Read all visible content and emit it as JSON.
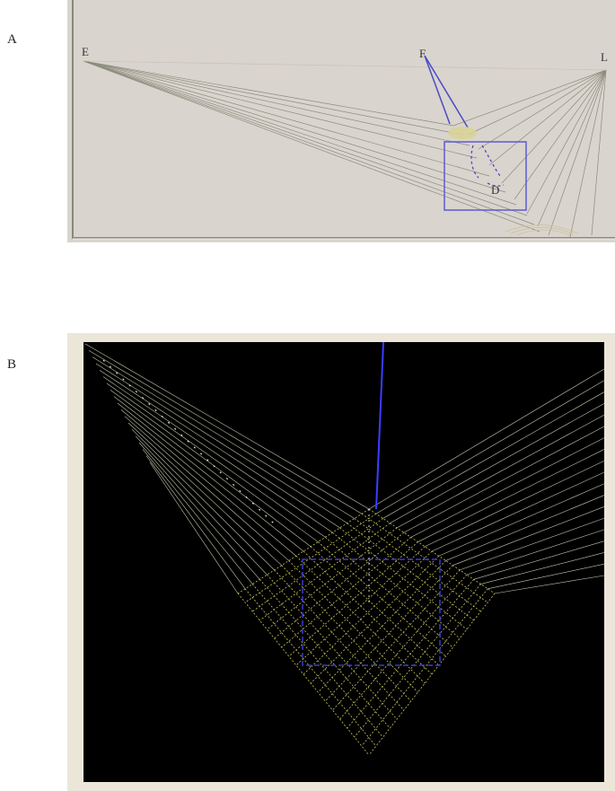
{
  "panels": [
    {
      "id": "A",
      "label": "A",
      "background": "#d9d4cd",
      "points": {
        "E": "E",
        "F": "F",
        "L": "L",
        "D": "D"
      },
      "colors": {
        "ray": "#8c8c7e",
        "highlight": "#4a4bc8",
        "spot": "#d8d493"
      }
    },
    {
      "id": "B",
      "label": "B",
      "background": "#000000",
      "frame": "#ebe6d8",
      "colors": {
        "ray": "#c8c8b0",
        "grid": "#c8c45a",
        "highlight": "#3b3dff"
      }
    }
  ]
}
